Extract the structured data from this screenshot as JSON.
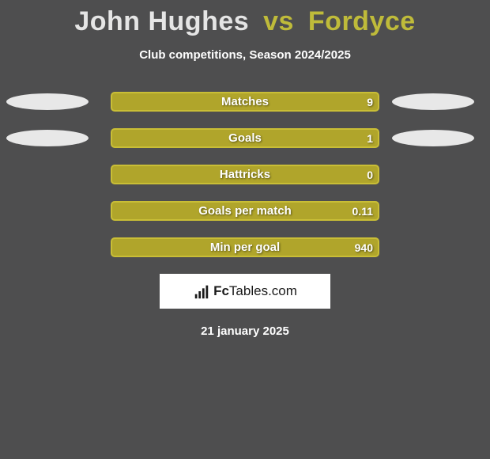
{
  "background_color": "#4e4e4f",
  "title": {
    "player1": "John Hughes",
    "vs": "vs",
    "player2": "Fordyce",
    "player1_color": "#e5e5e5",
    "vs_color": "#bfbb3a",
    "player2_color": "#bfbb3a",
    "fontsize": 34
  },
  "subtitle": "Club competitions, Season 2024/2025",
  "ellipse": {
    "fill": "#e8e8e8",
    "width": 104,
    "height": 21
  },
  "bars": {
    "fill_color": "#b0a52b",
    "border_color": "#c9be36",
    "text_color": "#ffffff",
    "fontsize": 15
  },
  "stats": [
    {
      "label": "Matches",
      "value_left": "",
      "value_right": "9",
      "show_ellipses": true
    },
    {
      "label": "Goals",
      "value_left": "",
      "value_right": "1",
      "show_ellipses": true
    },
    {
      "label": "Hattricks",
      "value_left": "",
      "value_right": "0",
      "show_ellipses": false
    },
    {
      "label": "Goals per match",
      "value_left": "",
      "value_right": "0.11",
      "show_ellipses": false
    },
    {
      "label": "Min per goal",
      "value_left": "",
      "value_right": "940",
      "show_ellipses": false
    }
  ],
  "logo": {
    "text_bold": "Fc",
    "text_rest": "Tables.com",
    "background": "#ffffff",
    "text_color": "#1a1a1a",
    "icon_color": "#1a1a1a"
  },
  "date": "21 january 2025"
}
